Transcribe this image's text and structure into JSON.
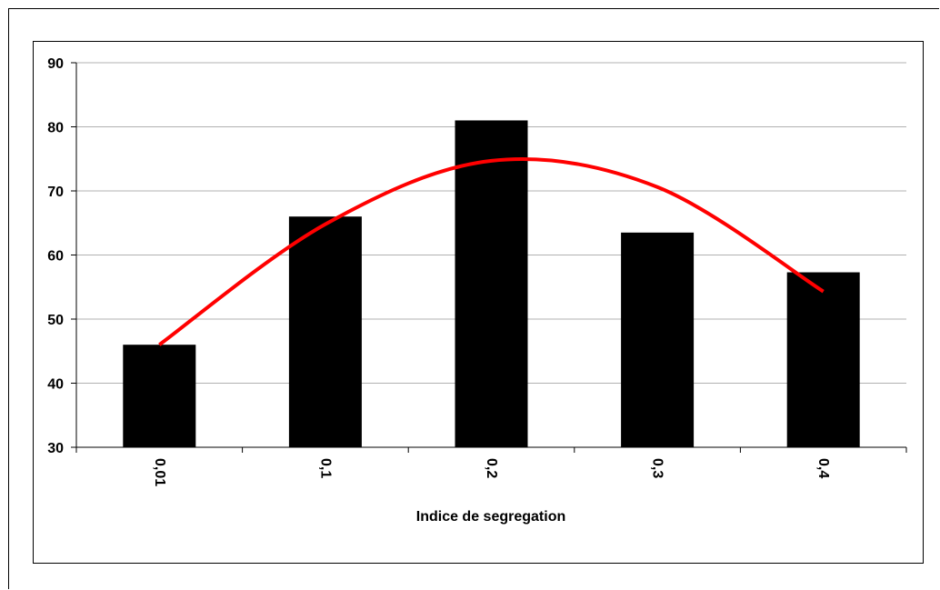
{
  "chart_data": {
    "type": "bar",
    "title": "",
    "xlabel": "Indice de segregation",
    "ylabel": "",
    "categories": [
      "0,01",
      "0,1",
      "0,2",
      "0,3",
      "0,4"
    ],
    "values": [
      46,
      66,
      81,
      63.5,
      57.3
    ],
    "ylim": [
      30,
      90
    ],
    "yticks": [
      "30",
      "40",
      "50",
      "60",
      "70",
      "80",
      "90"
    ],
    "grid": true,
    "legend": "none",
    "bar_color": "#000000",
    "trend_color": "#ff0000",
    "trendline": {
      "type": "polynomial",
      "values": [
        46,
        64.8,
        74.7,
        70.6,
        54.3
      ]
    }
  }
}
